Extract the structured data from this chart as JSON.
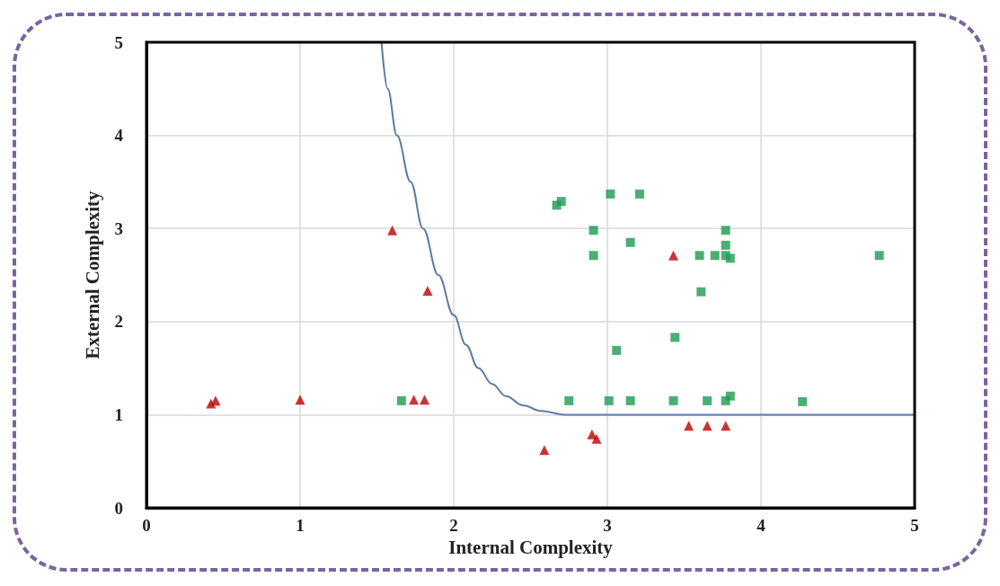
{
  "chart_data": {
    "type": "scatter",
    "xlabel": "Internal Complexity",
    "ylabel": "External Complexity",
    "xlim": [
      0,
      5
    ],
    "xticks": [
      0,
      1,
      2,
      3,
      4,
      5
    ],
    "ylim": [
      0,
      5
    ],
    "yticks": [
      0,
      1,
      2,
      3,
      4,
      5
    ],
    "grid": true,
    "series": [
      {
        "type": "line",
        "color": "#5b7ca3",
        "marker": "none",
        "line_style": "solid",
        "x": [
          1.53,
          1.57,
          1.63,
          1.72,
          1.8,
          1.9,
          2.0,
          2.08,
          2.16,
          2.25,
          2.34,
          2.45,
          2.57,
          2.72,
          3.0,
          4.0,
          5.0
        ],
        "values": [
          5,
          4.5,
          4,
          3.5,
          3,
          2.5,
          2.07,
          1.75,
          1.5,
          1.33,
          1.2,
          1.1,
          1.04,
          1.0,
          1.0,
          1.0,
          1.0
        ]
      },
      {
        "color": "#c00000",
        "marker": "triangle",
        "x": [
          0.42,
          0.45,
          1.0,
          1.6,
          1.83,
          1.74,
          1.81,
          2.59,
          2.9,
          2.93,
          3.43,
          3.53,
          3.65,
          3.77
        ],
        "values": [
          1.12,
          1.15,
          1.16,
          2.98,
          2.33,
          1.16,
          1.16,
          0.62,
          0.79,
          0.74,
          2.71,
          0.88,
          0.88,
          0.88
        ]
      },
      {
        "color": "#1e9a52",
        "marker": "square",
        "x": [
          1.66,
          2.67,
          2.7,
          3.02,
          3.21,
          2.91,
          2.91,
          3.15,
          3.6,
          3.7,
          3.77,
          3.77,
          3.77,
          3.8,
          3.61,
          4.77,
          3.44,
          3.06,
          2.75,
          3.01,
          3.15,
          3.43,
          3.65,
          3.77,
          3.8,
          4.27
        ],
        "values": [
          1.15,
          3.25,
          3.29,
          3.37,
          3.37,
          2.98,
          2.71,
          2.85,
          2.71,
          2.71,
          2.98,
          2.82,
          2.71,
          2.68,
          2.32,
          2.71,
          1.83,
          1.69,
          1.15,
          1.15,
          1.15,
          1.15,
          1.15,
          1.15,
          1.2,
          1.14
        ]
      }
    ]
  }
}
